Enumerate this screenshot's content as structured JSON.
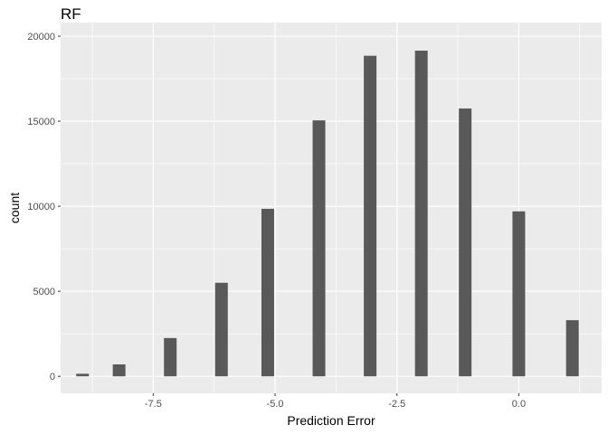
{
  "chart_data": {
    "type": "bar",
    "title": "RF",
    "xlabel": "Prediction Error",
    "ylabel": "count",
    "xlim": [
      -9.4,
      1.7
    ],
    "ylim": [
      -1000,
      20800
    ],
    "x_ticks": [
      -7.5,
      -5.0,
      -2.5,
      0.0
    ],
    "x_tick_labels": [
      "-7.5",
      "-5.0",
      "-2.5",
      "0.0"
    ],
    "y_ticks": [
      0,
      5000,
      10000,
      15000,
      20000
    ],
    "y_tick_labels": [
      "0",
      "5000",
      "10000",
      "15000",
      "20000"
    ],
    "bar_width": 0.26,
    "x": [
      -8.95,
      -8.2,
      -7.15,
      -6.1,
      -5.15,
      -4.1,
      -3.05,
      -2.0,
      -1.1,
      0.0,
      1.1
    ],
    "values": [
      150,
      700,
      2250,
      5500,
      9850,
      15050,
      18850,
      19150,
      15750,
      9700,
      3300
    ],
    "bar_color": "#595959",
    "panel_color": "#ebebeb",
    "grid": true,
    "grid_color": "#ffffff"
  }
}
